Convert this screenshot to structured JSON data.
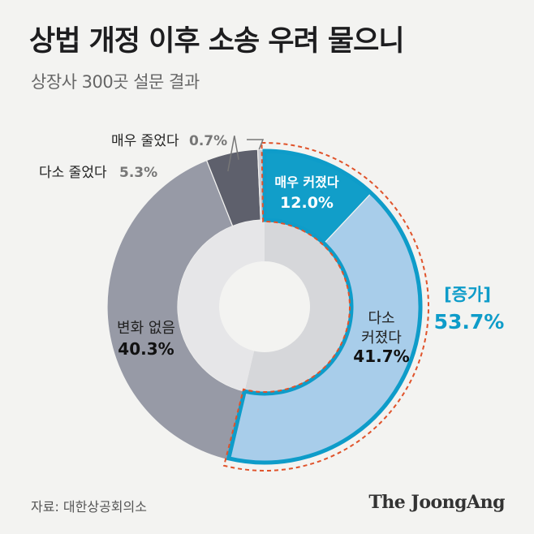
{
  "header": {
    "title": "상법 개정 이후 소송 우려 물으니",
    "subtitle": "상장사 300곳 설문 결과"
  },
  "footer": {
    "source": "자료: 대한상공회의소",
    "brand": "The JoongAng"
  },
  "colors": {
    "very_increased": "#119ec9",
    "somewhat_increased": "#a8cdea",
    "no_change": "#979aa6",
    "somewhat_decreased": "#5e606c",
    "very_decreased": "#c9cad0",
    "increase_accent": "#0e9cc9",
    "dashed_outline": "#e0532b"
  },
  "chart_data": {
    "type": "pie",
    "title": "상법 개정 이후 소송 우려 물으니",
    "subtitle": "상장사 300곳 설문 결과",
    "unit": "%",
    "slices": [
      {
        "name": "매우 커졌다",
        "value": 12.0,
        "label": "매우 커졌다",
        "value_label": "12.0%"
      },
      {
        "name": "다소 커졌다",
        "value": 41.7,
        "label": "다소\n커졌다",
        "value_label": "41.7%"
      },
      {
        "name": "변화 없음",
        "value": 40.3,
        "label": "변화 없음",
        "value_label": "40.3%"
      },
      {
        "name": "다소 줄었다",
        "value": 5.3,
        "label": "다소 줄었다",
        "value_label": "5.3%"
      },
      {
        "name": "매우 줄었다",
        "value": 0.7,
        "label": "매우 줄었다",
        "value_label": "0.7%"
      }
    ],
    "group_annotation": {
      "label": "[증가]",
      "value": 53.7,
      "value_label": "53.7%"
    }
  }
}
